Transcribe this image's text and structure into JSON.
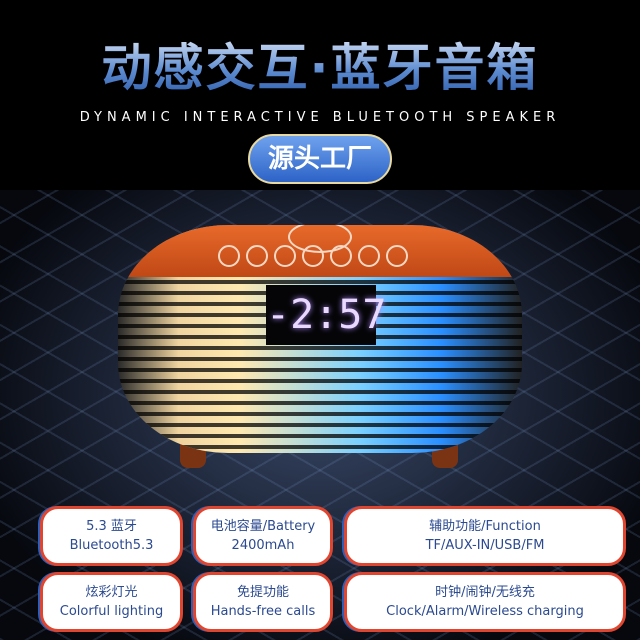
{
  "header": {
    "title": "动感交互·蓝牙音箱",
    "subtitle": "DYNAMIC INTERACTIVE BLUETOOTH SPEAKER",
    "badge": "源头工厂"
  },
  "product": {
    "display_time": "-2:57",
    "top_color": "#e06020"
  },
  "features": [
    {
      "line1": "5.3 蓝牙",
      "line2": "Bluetooth5.3"
    },
    {
      "line1": "电池容量/Battery",
      "line2": "2400mAh"
    },
    {
      "line1": "辅助功能/Function",
      "line2": "TF/AUX-IN/USB/FM"
    },
    {
      "line1": "炫彩灯光",
      "line2": "Colorful lighting"
    },
    {
      "line1": "免提功能",
      "line2": "Hands-free calls"
    },
    {
      "line1": "时钟/闹钟/无线充",
      "line2": "Clock/Alarm/Wireless charging"
    }
  ]
}
